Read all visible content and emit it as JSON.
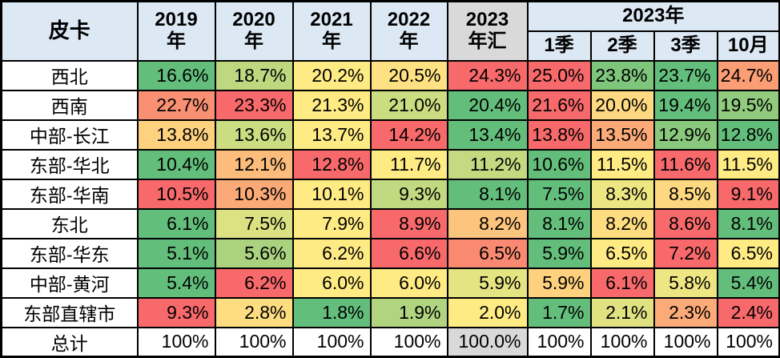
{
  "colors": {
    "header_bg": "#DCE9F5",
    "summary_bg": "#D9D9D9",
    "cell_bg": "#FFFFFF",
    "border": "#000000",
    "text": "#000000",
    "heatmap_min_green": "#63BE7B",
    "heatmap_mid_yellow": "#FFEB84",
    "heatmap_max_red": "#F8696B"
  },
  "header": {
    "corner": "皮卡",
    "year_cols": [
      "2019\n年",
      "2020\n年",
      "2021\n年",
      "2022\n年"
    ],
    "summary_col": "2023\n年汇",
    "group_2023": "2023年",
    "quarter_cols": [
      "1季",
      "2季",
      "3季",
      "10月"
    ]
  },
  "chart_data": {
    "type": "table",
    "title": "皮卡",
    "unit": "%",
    "columns": [
      "2019年",
      "2020年",
      "2021年",
      "2022年",
      "2023年汇",
      "2023年1季",
      "2023年2季",
      "2023年3季",
      "2023年10月"
    ],
    "heatmap_note": "per-row 3-color scale (green=min, yellow=50th percentile, red=max), applied separately to the 5 year columns and the 4 quarter columns; total row has no fill",
    "rows": [
      {
        "region": "西北",
        "values": [
          16.6,
          18.7,
          20.2,
          20.5,
          24.3,
          25.0,
          23.8,
          23.7,
          24.7
        ]
      },
      {
        "region": "西南",
        "values": [
          22.7,
          23.3,
          21.3,
          21.0,
          20.4,
          21.6,
          20.0,
          19.4,
          19.5
        ]
      },
      {
        "region": "中部-长江",
        "values": [
          13.8,
          13.6,
          13.7,
          14.2,
          13.4,
          13.8,
          13.5,
          12.9,
          12.8
        ]
      },
      {
        "region": "东部-华北",
        "values": [
          10.4,
          12.1,
          12.8,
          11.7,
          11.2,
          10.6,
          11.5,
          11.6,
          11.5
        ]
      },
      {
        "region": "东部-华南",
        "values": [
          10.5,
          10.3,
          10.1,
          9.3,
          8.1,
          7.5,
          8.3,
          8.5,
          9.1
        ]
      },
      {
        "region": "东北",
        "values": [
          6.1,
          7.5,
          7.9,
          8.9,
          8.2,
          8.1,
          8.2,
          8.6,
          8.1
        ]
      },
      {
        "region": "东部-华东",
        "values": [
          5.1,
          5.6,
          6.2,
          6.6,
          6.5,
          5.9,
          6.5,
          7.2,
          6.5
        ]
      },
      {
        "region": "中部-黄河",
        "values": [
          5.4,
          6.2,
          6.0,
          6.0,
          5.9,
          5.9,
          6.1,
          5.8,
          5.4
        ]
      },
      {
        "region": "东部直辖市",
        "values": [
          9.3,
          2.8,
          1.8,
          1.9,
          2.0,
          1.7,
          2.1,
          2.3,
          2.4
        ]
      },
      {
        "region": "总计",
        "heatmap": false,
        "values": [
          100,
          100,
          100,
          100,
          100.0,
          100,
          100,
          100,
          100
        ],
        "display": [
          "100%",
          "100%",
          "100%",
          "100%",
          "100.0%",
          "100%",
          "100%",
          "100%",
          "100%"
        ]
      }
    ]
  }
}
